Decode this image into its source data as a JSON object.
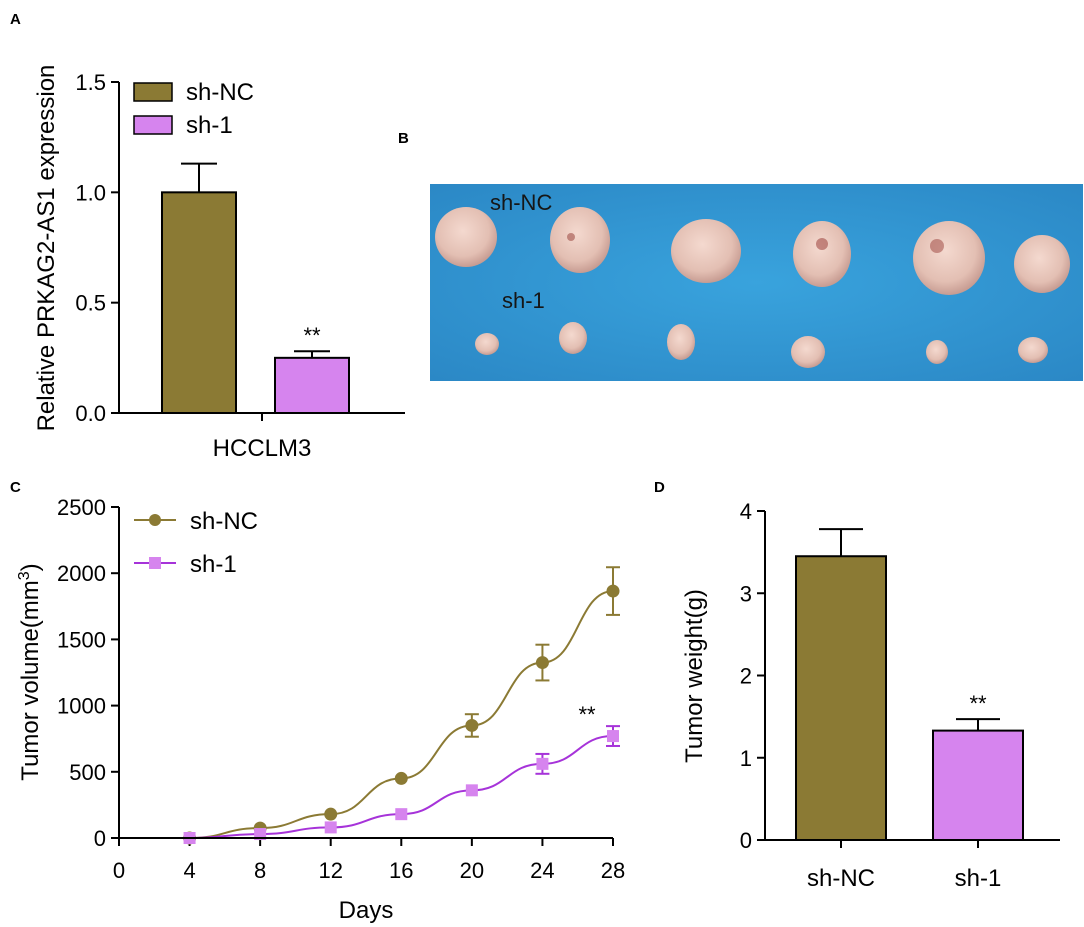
{
  "panels": {
    "a": {
      "letter": "A"
    },
    "b": {
      "letter": "B",
      "row_label_top": "sh-NC",
      "row_label_bottom": "sh-1"
    },
    "c": {
      "letter": "C"
    },
    "d": {
      "letter": "D"
    }
  },
  "colors": {
    "sh_nc_bar": "#8b7a34",
    "sh_1_bar": "#d684ee",
    "sh_nc_line": "#8b7a34",
    "sh_1_line": "#a633d9",
    "sh_1_marker": "#d684ee",
    "photo_bg": "#2f96d2",
    "tumor": "#e7c2b8"
  },
  "chart_data": [
    {
      "id": "A",
      "type": "bar",
      "ylabel": "Relative PRKAG2-AS1 expression",
      "xlabel": "",
      "categories": [
        "HCCLM3"
      ],
      "ylim": [
        0,
        1.5
      ],
      "yticks": [
        "0.0",
        "0.5",
        "1.0",
        "1.5"
      ],
      "legend": [
        "sh-NC",
        "sh-1"
      ],
      "series": [
        {
          "name": "sh-NC",
          "values": [
            1.0
          ],
          "error": [
            0.13
          ],
          "annotation": ""
        },
        {
          "name": "sh-1",
          "values": [
            0.25
          ],
          "error": [
            0.03
          ],
          "annotation": "**"
        }
      ]
    },
    {
      "id": "C",
      "type": "line",
      "ylabel_main": "Tumor volume(mm",
      "ylabel_sup": "3",
      "ylabel_close": ")",
      "xlabel": "Days",
      "xlim": [
        0,
        28
      ],
      "ylim": [
        0,
        2500
      ],
      "xticks": [
        "0",
        "4",
        "8",
        "12",
        "16",
        "20",
        "24",
        "28"
      ],
      "yticks": [
        "0",
        "500",
        "1000",
        "1500",
        "2000",
        "2500"
      ],
      "x": [
        4,
        8,
        12,
        16,
        20,
        24,
        28
      ],
      "annotation": "**",
      "series": [
        {
          "name": "sh-NC",
          "values": [
            0,
            75,
            180,
            450,
            850,
            1325,
            1865
          ],
          "error": [
            0,
            0,
            0,
            0,
            85,
            135,
            180
          ]
        },
        {
          "name": "sh-1",
          "values": [
            0,
            30,
            80,
            180,
            360,
            560,
            770
          ],
          "error": [
            0,
            0,
            0,
            0,
            0,
            75,
            75
          ]
        }
      ]
    },
    {
      "id": "D",
      "type": "bar",
      "ylabel": "Tumor weight(g)",
      "xlabel": "",
      "categories": [
        "sh-NC",
        "sh-1"
      ],
      "ylim": [
        0,
        4
      ],
      "yticks": [
        "0",
        "1",
        "2",
        "3",
        "4"
      ],
      "values": [
        3.45,
        1.33
      ],
      "error": [
        0.33,
        0.14
      ],
      "annotations": [
        "",
        "**"
      ]
    }
  ]
}
